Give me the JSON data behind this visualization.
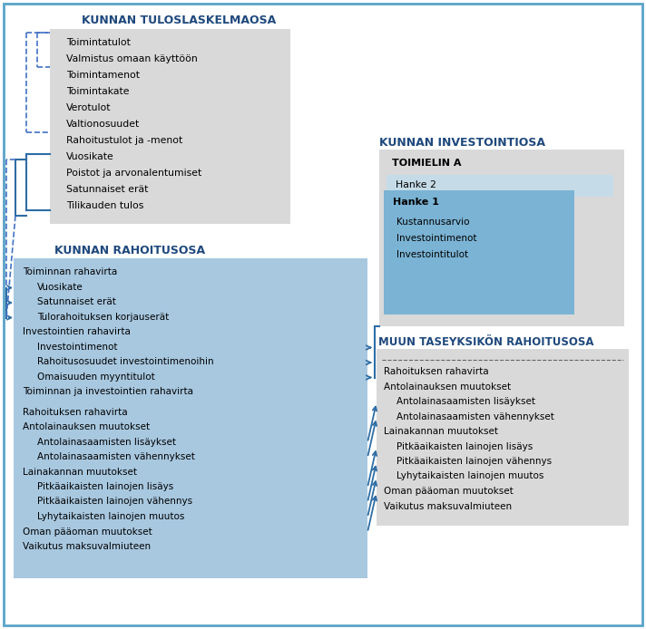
{
  "bg_color": "#ffffff",
  "border_color": "#5ba3c9",
  "title_color": "#1f497d",
  "gray_box_color": "#d9d9d9",
  "light_blue_box": "#c5dce8",
  "med_blue_box": "#7ab3d4",
  "rahoitus_blue": "#a8c8e0",
  "arrow_color": "#2e6da4",
  "dashed_color": "#4472c4",
  "tuloslaskelma_title": "KUNNAN TULOSLASKELMAOSA",
  "tuloslaskelma_items": [
    "Toimintatulot",
    "Valmistus omaan käyttöön",
    "Toimintamenot",
    "Toimintakate",
    "Verotulot",
    "Valtionosuudet",
    "Rahoitustulot ja -menot",
    "Vuosikate",
    "Poistot ja arvonalentumiset",
    "Satunnaiset erät",
    "Tilikauden tulos"
  ],
  "investointi_title": "KUNNAN INVESTOINTIOSA",
  "toimielin_title": "TOIMIELIN A",
  "hanke2_label": "Hanke 2",
  "hanke1_label": "Hanke 1",
  "hanke1_items": [
    "Kustannusarvio",
    "Investointimenot",
    "Investointitulot"
  ],
  "rahoitus_title": "KUNNAN RAHOITUSOSA",
  "rahoitus_items": [
    "Toiminnan rahavirta",
    "  Vuosikate",
    "  Satunnaiset erät",
    "  Tulorahoituksen korjauserät",
    "Investointien rahavirta",
    "  Investointimenot",
    "  Rahoitusosuudet investointimenoihin",
    "  Omaisuuden myyntitulot",
    "Toiminnan ja investointien rahavirta",
    "",
    "Rahoituksen rahavirta",
    "Antolainauksen muutokset",
    "  Antolainasaamisten lisäykset",
    "  Antolainasaamisten vähennykset",
    "Lainakannan muutokset",
    "  Pitkäaikaisten lainojen lisäys",
    "  Pitkäaikaisten lainojen vähennys",
    "  Lyhytaikaisten lainojen muutos",
    "Oman pääoman muutokset",
    "Vaikutus maksuvalmiuteen"
  ],
  "muu_title": "MUUN TASEYKSIKÖN RAHOITUSOSA",
  "muu_items": [
    "Rahoituksen rahavirta",
    "Antolainauksen muutokset",
    "  Antolainasaamisten lisäykset",
    "  Antolainasaamisten vähennykset",
    "Lainakannan muutokset",
    "  Pitkäaikaisten lainojen lisäys",
    "  Pitkäaikaisten lainojen vähennys",
    "  Lyhytaikaisten lainojen muutos",
    "Oman pääoman muutokset",
    "Vaikutus maksuvalmiuteen"
  ]
}
